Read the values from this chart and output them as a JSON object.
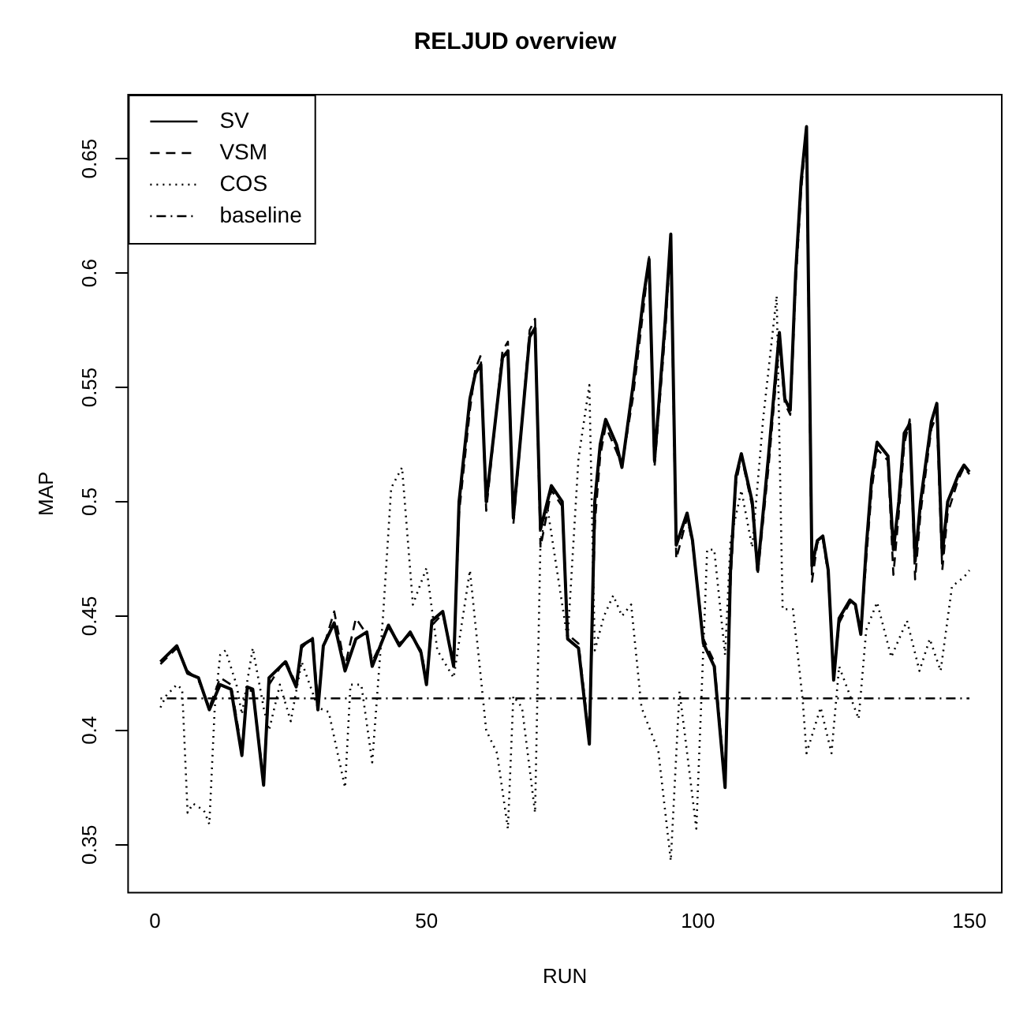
{
  "chart_data": {
    "type": "line",
    "title": "RELJUD overview",
    "xlabel": "RUN",
    "ylabel": "MAP",
    "xlim": [
      -4.96,
      155.96
    ],
    "xticks": [
      0,
      50,
      100,
      150
    ],
    "ylim": [
      0.329,
      0.678
    ],
    "yticks": [
      0.35,
      0.4,
      0.45,
      0.5,
      0.55,
      0.6,
      0.65
    ],
    "grid": false,
    "legend": "top left",
    "marker": "none",
    "series": [
      {
        "name": "SV",
        "color": "#000000",
        "line_style": "solid",
        "x": [
          1,
          4,
          6,
          8,
          10,
          12,
          14,
          16,
          17,
          18,
          20,
          21,
          24,
          26,
          27,
          29,
          30,
          31,
          33,
          35,
          37,
          39,
          40,
          43,
          45,
          47,
          49,
          50,
          51,
          53,
          55,
          56,
          58,
          59,
          60,
          61,
          64,
          65,
          66,
          69,
          70,
          71,
          73,
          75,
          76,
          78,
          80,
          81,
          82,
          83,
          85,
          86,
          88,
          90,
          91,
          92,
          94,
          95,
          96,
          98,
          99,
          101,
          103,
          105,
          106,
          107,
          108,
          110,
          111,
          113,
          115,
          116,
          117,
          118,
          119,
          120,
          121,
          122,
          123,
          124,
          125,
          126,
          128,
          129,
          130,
          131,
          132,
          133,
          135,
          136,
          137,
          138,
          139,
          140,
          141,
          143,
          144,
          145,
          146,
          148,
          149,
          150
        ],
        "values": [
          0.43,
          0.437,
          0.425,
          0.423,
          0.409,
          0.42,
          0.418,
          0.389,
          0.419,
          0.418,
          0.376,
          0.423,
          0.43,
          0.419,
          0.437,
          0.44,
          0.409,
          0.437,
          0.447,
          0.426,
          0.44,
          0.443,
          0.428,
          0.446,
          0.437,
          0.443,
          0.434,
          0.42,
          0.448,
          0.452,
          0.428,
          0.5,
          0.545,
          0.556,
          0.56,
          0.5,
          0.563,
          0.566,
          0.493,
          0.572,
          0.576,
          0.488,
          0.507,
          0.5,
          0.44,
          0.436,
          0.394,
          0.5,
          0.525,
          0.536,
          0.525,
          0.515,
          0.55,
          0.59,
          0.606,
          0.518,
          0.58,
          0.617,
          0.481,
          0.495,
          0.483,
          0.438,
          0.428,
          0.375,
          0.47,
          0.511,
          0.521,
          0.5,
          0.47,
          0.52,
          0.574,
          0.545,
          0.54,
          0.6,
          0.64,
          0.664,
          0.472,
          0.483,
          0.485,
          0.47,
          0.422,
          0.449,
          0.457,
          0.455,
          0.442,
          0.48,
          0.51,
          0.526,
          0.52,
          0.479,
          0.5,
          0.53,
          0.534,
          0.474,
          0.5,
          0.535,
          0.543,
          0.477,
          0.5,
          0.512,
          0.516,
          0.513
        ]
      },
      {
        "name": "VSM",
        "color": "#000000",
        "line_style": "dashed",
        "x": [
          1,
          4,
          6,
          8,
          10,
          12,
          14,
          16,
          17,
          18,
          20,
          21,
          24,
          26,
          27,
          29,
          30,
          31,
          33,
          35,
          37,
          39,
          40,
          43,
          45,
          47,
          49,
          50,
          51,
          53,
          55,
          56,
          58,
          59,
          60,
          61,
          64,
          65,
          66,
          69,
          70,
          71,
          73,
          75,
          76,
          78,
          80,
          81,
          82,
          83,
          85,
          86,
          88,
          90,
          91,
          92,
          94,
          95,
          96,
          98,
          99,
          101,
          103,
          105,
          106,
          107,
          108,
          110,
          111,
          113,
          115,
          116,
          117,
          118,
          119,
          120,
          121,
          122,
          123,
          124,
          125,
          126,
          128,
          129,
          130,
          131,
          132,
          133,
          135,
          136,
          137,
          138,
          139,
          140,
          141,
          143,
          144,
          145,
          146,
          148,
          149,
          150
        ],
        "values": [
          0.429,
          0.436,
          0.426,
          0.422,
          0.41,
          0.423,
          0.42,
          0.391,
          0.418,
          0.417,
          0.378,
          0.42,
          0.431,
          0.42,
          0.436,
          0.441,
          0.412,
          0.436,
          0.452,
          0.428,
          0.449,
          0.442,
          0.43,
          0.445,
          0.438,
          0.442,
          0.435,
          0.422,
          0.446,
          0.451,
          0.43,
          0.495,
          0.54,
          0.558,
          0.564,
          0.496,
          0.566,
          0.57,
          0.49,
          0.575,
          0.58,
          0.48,
          0.505,
          0.498,
          0.442,
          0.438,
          0.396,
          0.49,
          0.52,
          0.533,
          0.522,
          0.516,
          0.545,
          0.585,
          0.607,
          0.515,
          0.575,
          0.615,
          0.475,
          0.493,
          0.482,
          0.44,
          0.43,
          0.377,
          0.465,
          0.508,
          0.52,
          0.498,
          0.468,
          0.515,
          0.57,
          0.543,
          0.538,
          0.595,
          0.636,
          0.662,
          0.465,
          0.482,
          0.484,
          0.468,
          0.424,
          0.447,
          0.456,
          0.454,
          0.443,
          0.475,
          0.505,
          0.523,
          0.518,
          0.468,
          0.495,
          0.525,
          0.536,
          0.466,
          0.495,
          0.532,
          0.538,
          0.47,
          0.495,
          0.51,
          0.515,
          0.512
        ]
      },
      {
        "name": "COS",
        "color": "#000000",
        "line_style": "dotted",
        "x": [
          1,
          2,
          4,
          5,
          6,
          7,
          9,
          10,
          11,
          12,
          13,
          15,
          16,
          18,
          20,
          21,
          23,
          25,
          27,
          30,
          32,
          35,
          36,
          38,
          40,
          42,
          43.5,
          45.5,
          47.5,
          50,
          52,
          55,
          58,
          61,
          63,
          65,
          66,
          67.6,
          70,
          71,
          72.3,
          75,
          76,
          78,
          80,
          81,
          82.7,
          84.4,
          86,
          87.7,
          89.6,
          92.7,
          95,
          96.6,
          97.5,
          99.7,
          101.7,
          103,
          105,
          106,
          108,
          110,
          112,
          114.5,
          115.6,
          117.5,
          119.3,
          120,
          122.6,
          124.6,
          126,
          129.6,
          131,
          133,
          135.6,
          138.5,
          140.8,
          142.7,
          144.7,
          146.8,
          149,
          150
        ],
        "values": [
          0.41,
          0.415,
          0.42,
          0.418,
          0.364,
          0.368,
          0.365,
          0.359,
          0.41,
          0.433,
          0.435,
          0.42,
          0.407,
          0.436,
          0.41,
          0.4,
          0.42,
          0.404,
          0.43,
          0.41,
          0.408,
          0.375,
          0.42,
          0.42,
          0.386,
          0.45,
          0.506,
          0.515,
          0.455,
          0.471,
          0.435,
          0.423,
          0.47,
          0.4,
          0.39,
          0.357,
          0.415,
          0.41,
          0.364,
          0.483,
          0.497,
          0.455,
          0.44,
          0.519,
          0.551,
          0.435,
          0.45,
          0.459,
          0.45,
          0.455,
          0.41,
          0.391,
          0.343,
          0.417,
          0.4,
          0.357,
          0.479,
          0.479,
          0.433,
          0.483,
          0.505,
          0.48,
          0.536,
          0.59,
          0.453,
          0.453,
          0.413,
          0.39,
          0.41,
          0.39,
          0.428,
          0.405,
          0.444,
          0.456,
          0.432,
          0.448,
          0.426,
          0.44,
          0.426,
          0.463,
          0.467,
          0.47
        ]
      },
      {
        "name": "baseline",
        "color": "#000000",
        "line_style": "dashdot",
        "x": [
          1,
          150
        ],
        "values": [
          0.414,
          0.414
        ]
      }
    ]
  }
}
